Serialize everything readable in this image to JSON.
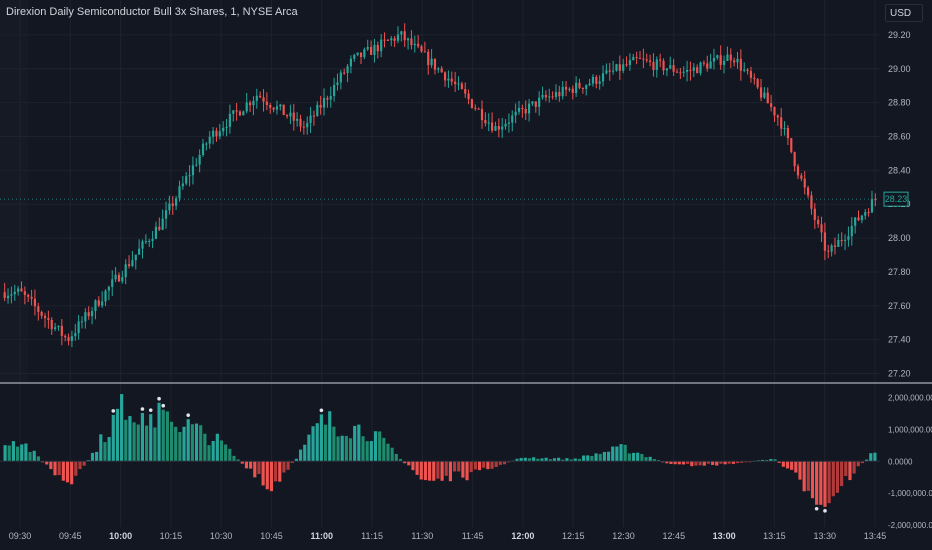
{
  "header": {
    "title": "Direxion Daily Semiconductor Bull 3x Shares, 1, NYSE Arca",
    "currency_label": "USD"
  },
  "price_axis": {
    "ticks": [
      "29.20",
      "29.00",
      "28.80",
      "28.60",
      "28.40",
      "28.20",
      "28.00",
      "27.80",
      "27.60",
      "27.40",
      "27.20"
    ],
    "last_price_label": "28.23"
  },
  "volume_axis": {
    "ticks": [
      "2,000,000.00",
      "1,000,000.00",
      "0.0000",
      "-1,000,000.00",
      "-2,000,000.00"
    ]
  },
  "time_axis": {
    "ticks": [
      "09:30",
      "09:45",
      "10:00",
      "10:15",
      "10:30",
      "10:45",
      "11:00",
      "11:15",
      "11:30",
      "11:45",
      "12:00",
      "12:15",
      "12:30",
      "12:45",
      "13:00",
      "13:15",
      "13:30",
      "13:45"
    ],
    "bold_ticks": [
      "10:00",
      "11:00",
      "12:00",
      "13:00"
    ]
  },
  "colors": {
    "background": "#131722",
    "up": "#26a69a",
    "down": "#ef5350",
    "grid": "#1e222d",
    "axis_text": "#b2b5be",
    "separator": "#d1d4dc",
    "last_price": "#26a69a"
  },
  "chart_data": [
    {
      "type": "candlestick",
      "title": "Direxion Daily Semiconductor Bull 3x Shares, 1, NYSE Arca",
      "x": [
        "09:30",
        "09:45",
        "10:00",
        "10:15",
        "10:30",
        "10:45",
        "11:00",
        "11:15",
        "11:30",
        "11:45",
        "12:00",
        "12:15",
        "12:30",
        "12:45",
        "13:00",
        "13:15",
        "13:30",
        "13:45"
      ],
      "close_path": [
        27.68,
        27.4,
        27.75,
        28.1,
        28.6,
        28.85,
        28.65,
        29.05,
        29.2,
        28.95,
        28.65,
        28.82,
        28.92,
        29.05,
        28.98,
        29.08,
        28.7,
        27.9,
        28.23
      ],
      "ylim": [
        27.15,
        29.3
      ],
      "last_price": 28.23,
      "grid": true
    },
    {
      "type": "bar",
      "x": [
        "09:30",
        "09:45",
        "10:00",
        "10:15",
        "10:30",
        "10:45",
        "11:00",
        "11:15",
        "11:30",
        "11:45",
        "12:00",
        "12:15",
        "12:30",
        "12:45",
        "13:00",
        "13:15",
        "13:30",
        "13:45"
      ],
      "values": [
        800000,
        -1000000,
        1900000,
        1600000,
        700000,
        -1200000,
        1500000,
        1100000,
        -700000,
        -500000,
        150000,
        80000,
        500000,
        -150000,
        -120000,
        100000,
        -1500000,
        400000
      ],
      "ylim": [
        -2000000,
        2300000
      ],
      "grid": false
    }
  ]
}
